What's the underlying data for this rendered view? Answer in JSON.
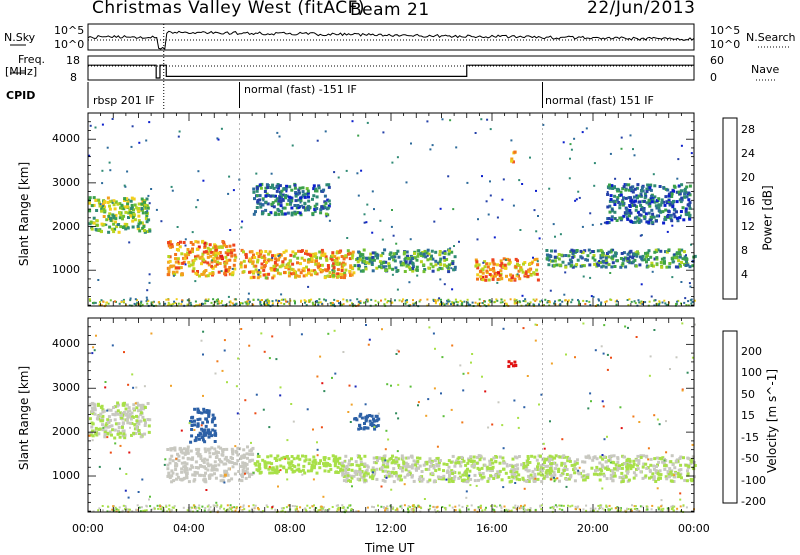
{
  "header": {
    "station": "Christmas Valley West (fitACF)",
    "beam": "Beam 21",
    "date": "22/Jun/2013"
  },
  "side_labels": {
    "nsky": "N.Sky",
    "nsearch": "N.Search",
    "freq": "Freq.",
    "freq_unit": "[MHz]",
    "nave": "Nave",
    "cpid": "CPID"
  },
  "noise_axis": {
    "left_ticks": [
      "10^5",
      "10^0"
    ],
    "right_ticks": [
      "10^5",
      "10^0"
    ]
  },
  "freq_axis": {
    "left_ticks": [
      "18",
      "8"
    ],
    "right_ticks": [
      "60",
      "0"
    ]
  },
  "cpid_segments": [
    {
      "label": "rbsp 201 IF"
    },
    {
      "label": "normal (fast) -151 IF"
    },
    {
      "label": "normal (fast) 151 IF"
    }
  ],
  "chart_data": [
    {
      "type": "heatmap",
      "panel": "power",
      "ylabel": "Slant Range [km]",
      "xlabel": "",
      "yticks": [
        "1000",
        "2000",
        "3000",
        "4000"
      ],
      "ylim": [
        180,
        4600
      ],
      "colorbar": {
        "label": "Power [dB]",
        "ticks": [
          "28",
          "24",
          "20",
          "16",
          "12",
          "8",
          "4"
        ],
        "range": [
          0,
          30
        ],
        "colors": [
          "#0b1ecc",
          "#2440a8",
          "#2c6a9a",
          "#2f8a74",
          "#3aa04a",
          "#72c030",
          "#b8d420",
          "#f2cf1c",
          "#f3a11c",
          "#f2721c",
          "#ee421e",
          "#e01a1a"
        ]
      },
      "echo_regions": [
        {
          "t0": 0.0,
          "t1": 2.4,
          "r0": 1900,
          "r1": 2700,
          "level": 14
        },
        {
          "t0": 3.1,
          "t1": 5.8,
          "r0": 900,
          "r1": 1700,
          "level": 22
        },
        {
          "t0": 6.0,
          "t1": 10.5,
          "r0": 850,
          "r1": 1500,
          "level": 21
        },
        {
          "t0": 10.5,
          "t1": 14.5,
          "r0": 1000,
          "r1": 1500,
          "level": 10
        },
        {
          "t0": 15.3,
          "t1": 17.8,
          "r0": 800,
          "r1": 1300,
          "level": 22
        },
        {
          "t0": 18.0,
          "t1": 24.0,
          "r0": 1100,
          "r1": 1500,
          "level": 9
        },
        {
          "t0": 6.5,
          "t1": 9.5,
          "r0": 2300,
          "r1": 3000,
          "level": 6
        },
        {
          "t0": 20.5,
          "t1": 23.8,
          "r0": 2100,
          "r1": 3000,
          "level": 5
        },
        {
          "t0": 16.6,
          "t1": 16.9,
          "r0": 3500,
          "r1": 3750,
          "level": 20
        }
      ]
    },
    {
      "type": "heatmap",
      "panel": "velocity",
      "ylabel": "Slant Range [km]",
      "xlabel": "Time UT",
      "xticks": [
        "00:00",
        "04:00",
        "08:00",
        "12:00",
        "16:00",
        "20:00",
        "00:00"
      ],
      "xlim": [
        0,
        24
      ],
      "yticks": [
        "1000",
        "2000",
        "3000",
        "4000"
      ],
      "ylim": [
        180,
        4600
      ],
      "colorbar": {
        "label": "Velocity [m s^-1]",
        "ticks": [
          "200",
          "100",
          "50",
          "15",
          "-15",
          "-50",
          "-100",
          "-200"
        ],
        "colors": [
          "#1a2ab8",
          "#2c60a6",
          "#2f8a5a",
          "#5bbe3a",
          "#a8e048",
          "#c8c8c0",
          "#f0a22a",
          "#f07a1a",
          "#ec4a14",
          "#e01010"
        ]
      },
      "echo_regions": [
        {
          "t0": 0.0,
          "t1": 2.4,
          "r0": 1900,
          "r1": 2700,
          "velocity": 0
        },
        {
          "t0": 3.1,
          "t1": 6.5,
          "r0": 900,
          "r1": 1700,
          "velocity": -30
        },
        {
          "t0": 6.5,
          "t1": 10.0,
          "r0": 1100,
          "r1": 1500,
          "velocity": 25
        },
        {
          "t0": 10.0,
          "t1": 24.0,
          "r0": 900,
          "r1": 1500,
          "velocity": 0
        },
        {
          "t0": 4.0,
          "t1": 5.0,
          "r0": 1800,
          "r1": 2600,
          "velocity": 150
        },
        {
          "t0": 10.5,
          "t1": 11.5,
          "r0": 2100,
          "r1": 2500,
          "velocity": 150
        },
        {
          "t0": 16.6,
          "t1": 16.9,
          "r0": 3500,
          "r1": 3750,
          "velocity": -200
        }
      ]
    }
  ]
}
